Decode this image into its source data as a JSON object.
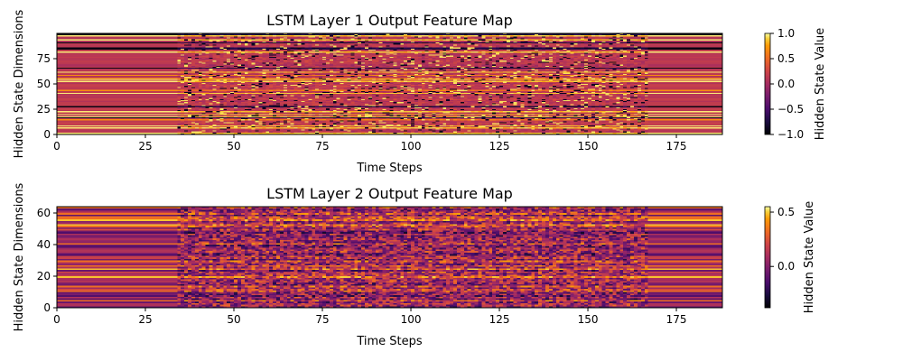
{
  "chart_data": [
    {
      "type": "heatmap",
      "title": "LSTM Layer 1 Output Feature Map",
      "xlabel": "Time Steps",
      "ylabel": "Hidden State Dimensions",
      "xlim": [
        0,
        188
      ],
      "ylim": [
        0,
        100
      ],
      "n_time_steps": 188,
      "n_dimensions": 100,
      "x_ticks": [
        0,
        25,
        50,
        75,
        100,
        125,
        150,
        175
      ],
      "y_ticks": [
        0,
        25,
        50,
        75
      ],
      "colormap": "inferno",
      "colorbar": {
        "label": "Hidden State Value",
        "vmin": -1.0,
        "vmax": 1.0,
        "ticks": [
          1.0,
          0.5,
          0.0,
          -0.5,
          -1.0
        ],
        "tick_labels": [
          "1.0",
          "0.5",
          "0.0",
          "−0.5",
          "−1.0"
        ]
      },
      "active_region": [
        34,
        166
      ],
      "grid": false
    },
    {
      "type": "heatmap",
      "title": "LSTM Layer 2 Output Feature Map",
      "xlabel": "Time Steps",
      "ylabel": "Hidden State Dimensions",
      "xlim": [
        0,
        188
      ],
      "ylim": [
        0,
        64
      ],
      "n_time_steps": 188,
      "n_dimensions": 64,
      "x_ticks": [
        0,
        25,
        50,
        75,
        100,
        125,
        150,
        175
      ],
      "y_ticks": [
        0,
        20,
        40,
        60
      ],
      "colormap": "inferno",
      "colorbar": {
        "label": "Hidden State Value",
        "vmin": -0.38,
        "vmax": 0.55,
        "ticks": [
          0.5,
          0.0
        ],
        "tick_labels": [
          "0.5",
          "0.0"
        ]
      },
      "active_region": [
        34,
        166
      ],
      "grid": false
    }
  ]
}
